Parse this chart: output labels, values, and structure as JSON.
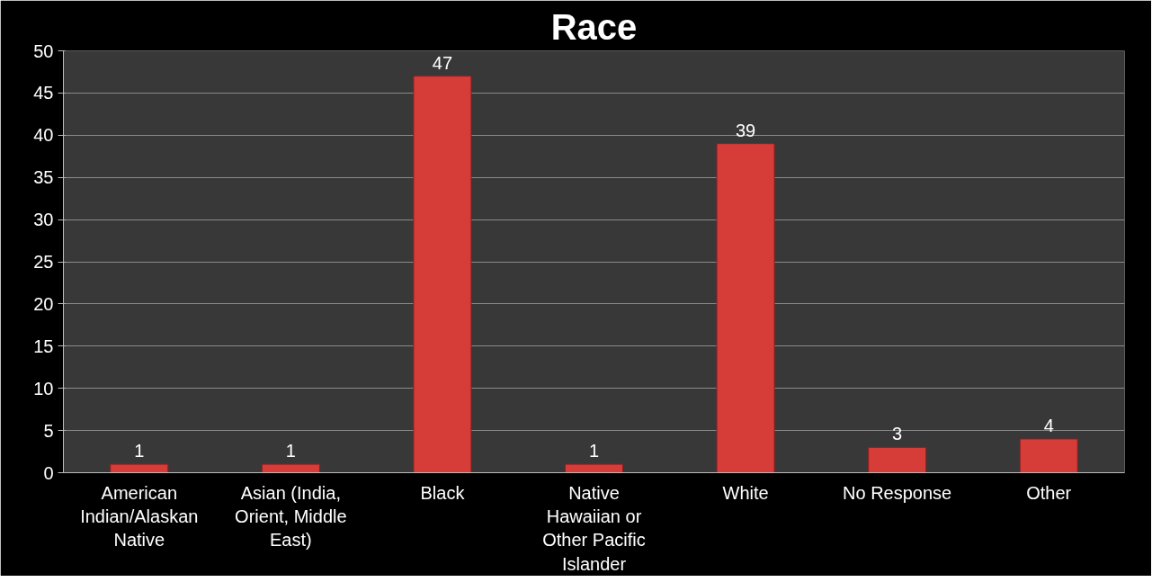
{
  "chart_data": {
    "type": "bar",
    "title": "Race",
    "categories": [
      "American Indian/Alaskan Native",
      "Asian (India, Orient, Middle East)",
      "Black",
      "Native Hawaiian or Other Pacific Islander",
      "White",
      "No Response",
      "Other"
    ],
    "values": [
      1,
      1,
      47,
      1,
      39,
      3,
      4
    ],
    "color": "#d63c38",
    "ylim": [
      0,
      50
    ],
    "yticks": [
      0,
      5,
      10,
      15,
      20,
      25,
      30,
      35,
      40,
      45,
      50
    ],
    "grid": "y",
    "data_labels": true
  }
}
